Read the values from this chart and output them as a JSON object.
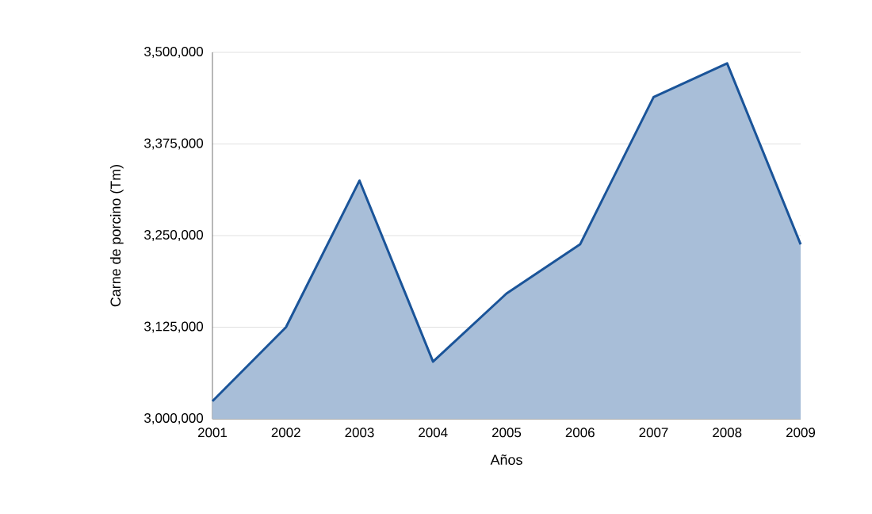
{
  "chart_data": {
    "type": "area",
    "xlabel": "Años",
    "ylabel": "Carne de porcino (Tm)",
    "color": "#1a5499",
    "x": [
      2001,
      2002,
      2003,
      2004,
      2005,
      2006,
      2007,
      2008,
      2009
    ],
    "values": [
      3024000,
      3125000,
      3325000,
      3078000,
      3171000,
      3238000,
      3439000,
      3485000,
      3238000
    ],
    "xlim": [
      2001,
      2009
    ],
    "xticks": [
      2001,
      2002,
      2003,
      2004,
      2005,
      2006,
      2007,
      2008,
      2009
    ],
    "ylim": [
      3000000,
      3500000
    ],
    "yticks": [
      {
        "value": 3000000,
        "label": "3,000,000"
      },
      {
        "value": 3125000,
        "label": "3,125,000"
      },
      {
        "value": 3250000,
        "label": "3,250,000"
      },
      {
        "value": 3375000,
        "label": "3,375,000"
      },
      {
        "value": 3500000,
        "label": "3,500,000"
      }
    ],
    "grid": "y"
  }
}
